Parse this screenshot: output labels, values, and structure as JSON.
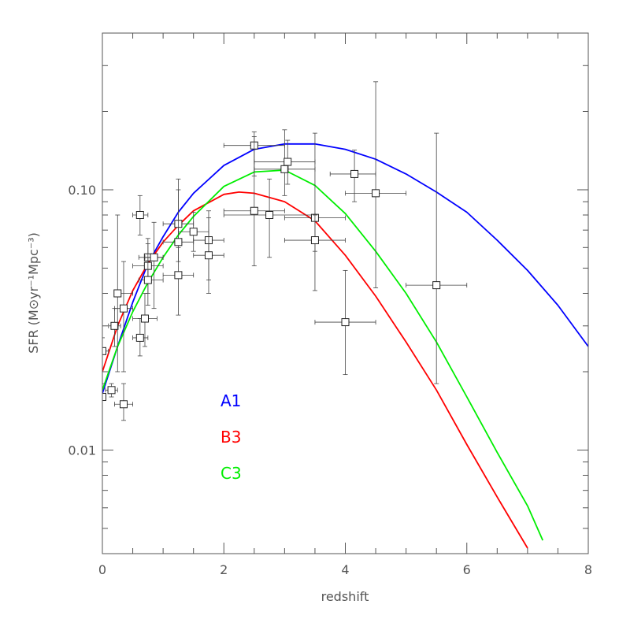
{
  "chart_data": {
    "type": "line",
    "title": "",
    "xlabel": "redshift",
    "ylabel": "SFR (M⊙yr⁻¹Mpc⁻³)",
    "xlim": [
      0,
      8
    ],
    "ylim": [
      0.004,
      0.4
    ],
    "yscale": "log",
    "grid": false,
    "legend_placement": "inside-lower-left",
    "x_ticks": [
      0,
      2,
      4,
      6,
      8
    ],
    "x_tick_labels": [
      "0",
      "2",
      "4",
      "6",
      "8"
    ],
    "y_ticks": [
      0.01,
      0.1
    ],
    "y_tick_labels": [
      "0.01",
      "0.10"
    ],
    "series": [
      {
        "name": "A1",
        "color": "#0000ff",
        "x": [
          0,
          0.25,
          0.5,
          0.75,
          1.0,
          1.25,
          1.5,
          2.0,
          2.5,
          3.0,
          3.5,
          4.0,
          4.5,
          5.0,
          5.5,
          6.0,
          6.5,
          7.0,
          7.5,
          8.0
        ],
        "y": [
          0.0165,
          0.025,
          0.037,
          0.052,
          0.066,
          0.082,
          0.097,
          0.124,
          0.143,
          0.15,
          0.15,
          0.143,
          0.131,
          0.115,
          0.098,
          0.082,
          0.064,
          0.049,
          0.036,
          0.025
        ]
      },
      {
        "name": "B3",
        "color": "#ff0000",
        "x": [
          0,
          0.25,
          0.5,
          0.75,
          1.0,
          1.25,
          1.5,
          2.0,
          2.25,
          2.5,
          3.0,
          3.5,
          4.0,
          4.5,
          5.0,
          5.5,
          6.0,
          6.5,
          7.0
        ],
        "y": [
          0.02,
          0.03,
          0.041,
          0.052,
          0.063,
          0.073,
          0.083,
          0.096,
          0.098,
          0.097,
          0.09,
          0.076,
          0.056,
          0.039,
          0.026,
          0.017,
          0.0105,
          0.0066,
          0.0042
        ]
      },
      {
        "name": "C3",
        "color": "#00ee00",
        "x": [
          0,
          0.25,
          0.5,
          0.75,
          1.0,
          1.25,
          1.5,
          2.0,
          2.5,
          3.0,
          3.5,
          4.0,
          4.5,
          5.0,
          5.5,
          6.0,
          6.5,
          7.0,
          7.25
        ],
        "y": [
          0.017,
          0.025,
          0.034,
          0.044,
          0.055,
          0.067,
          0.079,
          0.103,
          0.117,
          0.119,
          0.104,
          0.081,
          0.058,
          0.04,
          0.026,
          0.016,
          0.0098,
          0.0061,
          0.0045
        ]
      }
    ],
    "observations": [
      {
        "x": 0.0,
        "y": 0.024,
        "xlo": 0.0,
        "xhi": 0.1,
        "ylo": 0.018,
        "yhi": 0.027
      },
      {
        "x": 0.0,
        "y": 0.016,
        "xlo": 0.0,
        "xhi": 0.05,
        "ylo": 0.016,
        "yhi": 0.016
      },
      {
        "x": 0.15,
        "y": 0.017,
        "xlo": 0.05,
        "xhi": 0.25,
        "ylo": 0.016,
        "yhi": 0.018
      },
      {
        "x": 0.2,
        "y": 0.03,
        "xlo": 0.1,
        "xhi": 0.3,
        "ylo": 0.025,
        "yhi": 0.035
      },
      {
        "x": 0.25,
        "y": 0.04,
        "xlo": 0.2,
        "xhi": 0.5,
        "ylo": 0.02,
        "yhi": 0.08
      },
      {
        "x": 0.35,
        "y": 0.015,
        "xlo": 0.2,
        "xhi": 0.5,
        "ylo": 0.013,
        "yhi": 0.018
      },
      {
        "x": 0.35,
        "y": 0.035,
        "xlo": 0.2,
        "xhi": 0.5,
        "ylo": 0.02,
        "yhi": 0.053
      },
      {
        "x": 0.62,
        "y": 0.08,
        "xlo": 0.5,
        "xhi": 0.75,
        "ylo": 0.067,
        "yhi": 0.095
      },
      {
        "x": 0.62,
        "y": 0.027,
        "xlo": 0.5,
        "xhi": 0.75,
        "ylo": 0.023,
        "yhi": 0.032
      },
      {
        "x": 0.7,
        "y": 0.032,
        "xlo": 0.5,
        "xhi": 0.9,
        "ylo": 0.025,
        "yhi": 0.04
      },
      {
        "x": 0.75,
        "y": 0.055,
        "xlo": 0.6,
        "xhi": 1.0,
        "ylo": 0.045,
        "yhi": 0.065
      },
      {
        "x": 0.75,
        "y": 0.051,
        "xlo": 0.5,
        "xhi": 1.0,
        "ylo": 0.04,
        "yhi": 0.062
      },
      {
        "x": 0.75,
        "y": 0.045,
        "xlo": 0.6,
        "xhi": 1.0,
        "ylo": 0.036,
        "yhi": 0.055
      },
      {
        "x": 0.85,
        "y": 0.055,
        "xlo": 0.7,
        "xhi": 1.0,
        "ylo": 0.035,
        "yhi": 0.075
      },
      {
        "x": 1.25,
        "y": 0.074,
        "xlo": 1.0,
        "xhi": 1.5,
        "ylo": 0.062,
        "yhi": 0.1
      },
      {
        "x": 1.25,
        "y": 0.063,
        "xlo": 1.0,
        "xhi": 1.5,
        "ylo": 0.053,
        "yhi": 0.11
      },
      {
        "x": 1.25,
        "y": 0.047,
        "xlo": 1.0,
        "xhi": 1.5,
        "ylo": 0.033,
        "yhi": 0.06
      },
      {
        "x": 1.5,
        "y": 0.069,
        "xlo": 1.25,
        "xhi": 1.75,
        "ylo": 0.058,
        "yhi": 0.082
      },
      {
        "x": 1.75,
        "y": 0.064,
        "xlo": 1.5,
        "xhi": 2.0,
        "ylo": 0.045,
        "yhi": 0.083
      },
      {
        "x": 1.75,
        "y": 0.056,
        "xlo": 1.5,
        "xhi": 2.0,
        "ylo": 0.04,
        "yhi": 0.078
      },
      {
        "x": 2.5,
        "y": 0.148,
        "xlo": 2.0,
        "xhi": 3.0,
        "ylo": 0.113,
        "yhi": 0.167
      },
      {
        "x": 2.5,
        "y": 0.083,
        "xlo": 2.0,
        "xhi": 3.0,
        "ylo": 0.051,
        "yhi": 0.16
      },
      {
        "x": 2.75,
        "y": 0.08,
        "xlo": 2.0,
        "xhi": 3.5,
        "ylo": 0.055,
        "yhi": 0.11
      },
      {
        "x": 3.0,
        "y": 0.12,
        "xlo": 2.5,
        "xhi": 3.5,
        "ylo": 0.095,
        "yhi": 0.17
      },
      {
        "x": 3.05,
        "y": 0.128,
        "xlo": 2.5,
        "xhi": 3.5,
        "ylo": 0.105,
        "yhi": 0.155
      },
      {
        "x": 3.5,
        "y": 0.078,
        "xlo": 3.0,
        "xhi": 4.0,
        "ylo": 0.058,
        "yhi": 0.165
      },
      {
        "x": 3.5,
        "y": 0.064,
        "xlo": 3.0,
        "xhi": 4.0,
        "ylo": 0.041,
        "yhi": 0.08
      },
      {
        "x": 4.0,
        "y": 0.031,
        "xlo": 3.5,
        "xhi": 4.5,
        "ylo": 0.0195,
        "yhi": 0.049
      },
      {
        "x": 4.15,
        "y": 0.115,
        "xlo": 3.75,
        "xhi": 4.5,
        "ylo": 0.09,
        "yhi": 0.142
      },
      {
        "x": 4.5,
        "y": 0.097,
        "xlo": 4.0,
        "xhi": 5.0,
        "ylo": 0.042,
        "yhi": 0.26
      },
      {
        "x": 5.5,
        "y": 0.043,
        "xlo": 5.0,
        "xhi": 6.0,
        "ylo": 0.018,
        "yhi": 0.165
      }
    ]
  }
}
